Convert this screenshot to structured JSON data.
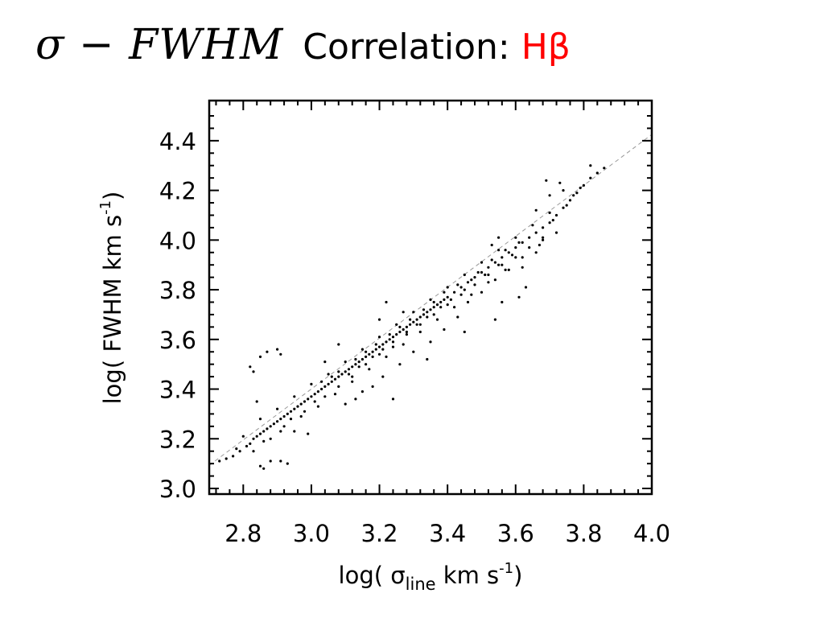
{
  "slide": {
    "title_math": "σ − FWHM",
    "title_text": "Correlation:",
    "title_species": "Hβ",
    "title_species_color": "#ff0000"
  },
  "chart_data": {
    "type": "scatter",
    "xlim": [
      2.7,
      4.0
    ],
    "ylim": [
      3.0,
      4.5
    ],
    "xticks": [
      2.8,
      3.0,
      3.2,
      3.4,
      3.6,
      3.8,
      4.0
    ],
    "yticks": [
      3.0,
      3.2,
      3.4,
      3.6,
      3.8,
      4.0,
      4.2,
      4.4
    ],
    "xtick_labels": [
      "2.8",
      "3.0",
      "3.2",
      "3.4",
      "3.6",
      "3.8",
      "4.0"
    ],
    "ytick_labels": [
      "3.0",
      "3.2",
      "3.4",
      "3.6",
      "3.8",
      "4.0",
      "4.2",
      "4.4"
    ],
    "xlabel": {
      "prefix": "log( σ",
      "subscript": "line",
      "units": " km s",
      "exponent": "-1",
      "suffix": ")"
    },
    "ylabel": {
      "prefix": "log( FWHM km s",
      "exponent": "-1",
      "suffix": ")"
    },
    "grid": false,
    "point_color": "#000000",
    "reference_line": {
      "style": "dashed",
      "color": "#999999",
      "x": [
        2.7,
        4.0
      ],
      "y": [
        3.093,
        4.425
      ]
    },
    "series": [
      {
        "points": [
          [
            2.73,
            3.11
          ],
          [
            2.75,
            3.12
          ],
          [
            2.77,
            3.13
          ],
          [
            2.79,
            3.15
          ],
          [
            2.81,
            3.17
          ],
          [
            2.82,
            3.18
          ],
          [
            2.83,
            3.2
          ],
          [
            2.84,
            3.21
          ],
          [
            2.85,
            3.22
          ],
          [
            2.86,
            3.23
          ],
          [
            2.87,
            3.24
          ],
          [
            2.88,
            3.25
          ],
          [
            2.89,
            3.26
          ],
          [
            2.9,
            3.27
          ],
          [
            2.91,
            3.28
          ],
          [
            2.92,
            3.29
          ],
          [
            2.93,
            3.3
          ],
          [
            2.94,
            3.31
          ],
          [
            2.95,
            3.32
          ],
          [
            2.96,
            3.33
          ],
          [
            2.97,
            3.34
          ],
          [
            2.98,
            3.35
          ],
          [
            2.99,
            3.36
          ],
          [
            3.0,
            3.37
          ],
          [
            3.01,
            3.38
          ],
          [
            3.02,
            3.39
          ],
          [
            3.03,
            3.4
          ],
          [
            3.04,
            3.41
          ],
          [
            3.05,
            3.42
          ],
          [
            3.06,
            3.43
          ],
          [
            3.07,
            3.44
          ],
          [
            3.08,
            3.45
          ],
          [
            3.09,
            3.46
          ],
          [
            3.1,
            3.47
          ],
          [
            3.11,
            3.48
          ],
          [
            3.12,
            3.49
          ],
          [
            3.13,
            3.5
          ],
          [
            3.14,
            3.51
          ],
          [
            3.15,
            3.52
          ],
          [
            3.16,
            3.53
          ],
          [
            3.17,
            3.54
          ],
          [
            3.18,
            3.55
          ],
          [
            3.19,
            3.56
          ],
          [
            3.2,
            3.57
          ],
          [
            3.21,
            3.58
          ],
          [
            3.22,
            3.59
          ],
          [
            3.23,
            3.6
          ],
          [
            3.24,
            3.61
          ],
          [
            3.25,
            3.62
          ],
          [
            3.26,
            3.63
          ],
          [
            3.27,
            3.64
          ],
          [
            3.28,
            3.65
          ],
          [
            3.29,
            3.66
          ],
          [
            3.3,
            3.67
          ],
          [
            3.31,
            3.68
          ],
          [
            3.32,
            3.69
          ],
          [
            3.33,
            3.7
          ],
          [
            3.34,
            3.71
          ],
          [
            3.35,
            3.72
          ],
          [
            3.36,
            3.73
          ],
          [
            3.37,
            3.74
          ],
          [
            3.38,
            3.75
          ],
          [
            3.39,
            3.76
          ],
          [
            3.4,
            3.77
          ],
          [
            3.42,
            3.79
          ],
          [
            3.44,
            3.81
          ],
          [
            3.46,
            3.83
          ],
          [
            3.48,
            3.85
          ],
          [
            3.5,
            3.87
          ],
          [
            3.52,
            3.89
          ],
          [
            3.54,
            3.91
          ],
          [
            3.56,
            3.93
          ],
          [
            3.58,
            3.95
          ],
          [
            3.6,
            3.97
          ],
          [
            3.62,
            3.99
          ],
          [
            3.64,
            4.01
          ],
          [
            3.66,
            4.03
          ],
          [
            3.68,
            4.05
          ],
          [
            3.7,
            4.07
          ],
          [
            3.72,
            4.1
          ],
          [
            3.74,
            4.13
          ],
          [
            3.76,
            4.16
          ],
          [
            3.78,
            4.19
          ],
          [
            3.8,
            4.22
          ],
          [
            3.82,
            4.25
          ],
          [
            3.84,
            4.27
          ],
          [
            3.86,
            4.29
          ],
          [
            2.8,
            3.21
          ],
          [
            2.83,
            3.15
          ],
          [
            2.85,
            3.28
          ],
          [
            2.88,
            3.2
          ],
          [
            2.9,
            3.32
          ],
          [
            2.92,
            3.25
          ],
          [
            2.95,
            3.37
          ],
          [
            2.97,
            3.29
          ],
          [
            3.0,
            3.42
          ],
          [
            3.02,
            3.33
          ],
          [
            3.05,
            3.46
          ],
          [
            3.07,
            3.38
          ],
          [
            3.1,
            3.51
          ],
          [
            3.12,
            3.43
          ],
          [
            3.15,
            3.56
          ],
          [
            3.17,
            3.48
          ],
          [
            3.2,
            3.61
          ],
          [
            3.22,
            3.53
          ],
          [
            3.25,
            3.66
          ],
          [
            3.27,
            3.58
          ],
          [
            3.3,
            3.71
          ],
          [
            3.32,
            3.63
          ],
          [
            3.35,
            3.76
          ],
          [
            3.37,
            3.68
          ],
          [
            3.4,
            3.81
          ],
          [
            3.42,
            3.73
          ],
          [
            3.45,
            3.86
          ],
          [
            3.47,
            3.78
          ],
          [
            3.5,
            3.91
          ],
          [
            3.52,
            3.83
          ],
          [
            3.55,
            3.96
          ],
          [
            3.57,
            3.88
          ],
          [
            3.6,
            4.01
          ],
          [
            3.62,
            3.93
          ],
          [
            3.65,
            4.06
          ],
          [
            3.67,
            3.98
          ],
          [
            3.7,
            4.11
          ],
          [
            3.72,
            4.03
          ],
          [
            3.03,
            3.43
          ],
          [
            3.06,
            3.45
          ],
          [
            3.08,
            3.47
          ],
          [
            3.11,
            3.46
          ],
          [
            3.13,
            3.52
          ],
          [
            3.14,
            3.49
          ],
          [
            3.16,
            3.55
          ],
          [
            3.18,
            3.53
          ],
          [
            3.19,
            3.58
          ],
          [
            3.21,
            3.56
          ],
          [
            3.23,
            3.62
          ],
          [
            3.24,
            3.59
          ],
          [
            3.26,
            3.65
          ],
          [
            3.28,
            3.63
          ],
          [
            3.29,
            3.68
          ],
          [
            3.31,
            3.66
          ],
          [
            3.33,
            3.72
          ],
          [
            3.34,
            3.69
          ],
          [
            3.36,
            3.75
          ],
          [
            3.38,
            3.73
          ],
          [
            3.39,
            3.79
          ],
          [
            3.41,
            3.76
          ],
          [
            3.43,
            3.82
          ],
          [
            3.45,
            3.8
          ],
          [
            3.47,
            3.84
          ],
          [
            3.49,
            3.87
          ],
          [
            3.51,
            3.86
          ],
          [
            3.53,
            3.92
          ],
          [
            3.55,
            3.9
          ],
          [
            3.57,
            3.96
          ],
          [
            3.59,
            3.94
          ],
          [
            3.61,
            3.99
          ],
          [
            2.78,
            3.16
          ],
          [
            2.86,
            3.19
          ],
          [
            2.91,
            3.23
          ],
          [
            2.94,
            3.28
          ],
          [
            2.98,
            3.31
          ],
          [
            3.01,
            3.35
          ],
          [
            3.04,
            3.37
          ],
          [
            3.08,
            3.41
          ],
          [
            3.12,
            3.45
          ],
          [
            3.16,
            3.5
          ],
          [
            3.2,
            3.54
          ],
          [
            3.24,
            3.57
          ],
          [
            3.28,
            3.62
          ],
          [
            3.32,
            3.66
          ],
          [
            3.36,
            3.7
          ],
          [
            3.4,
            3.74
          ],
          [
            3.44,
            3.78
          ],
          [
            3.48,
            3.82
          ],
          [
            3.52,
            3.86
          ],
          [
            3.56,
            3.9
          ],
          [
            3.6,
            3.93
          ],
          [
            3.64,
            3.97
          ],
          [
            3.68,
            4.01
          ],
          [
            2.82,
            3.49
          ],
          [
            2.83,
            3.47
          ],
          [
            2.85,
            3.53
          ],
          [
            2.87,
            3.55
          ],
          [
            2.9,
            3.56
          ],
          [
            2.91,
            3.54
          ],
          [
            2.85,
            3.09
          ],
          [
            2.86,
            3.08
          ],
          [
            2.88,
            3.11
          ],
          [
            2.91,
            3.11
          ],
          [
            2.95,
            3.23
          ],
          [
            2.99,
            3.22
          ],
          [
            2.84,
            3.35
          ],
          [
            2.93,
            3.1
          ],
          [
            3.1,
            3.34
          ],
          [
            3.13,
            3.36
          ],
          [
            3.15,
            3.39
          ],
          [
            3.24,
            3.36
          ],
          [
            3.34,
            3.52
          ],
          [
            3.27,
            3.71
          ],
          [
            3.22,
            3.75
          ],
          [
            3.2,
            3.68
          ],
          [
            3.45,
            3.63
          ],
          [
            3.54,
            3.68
          ],
          [
            3.56,
            3.75
          ],
          [
            3.61,
            3.77
          ],
          [
            3.63,
            3.81
          ],
          [
            3.55,
            4.01
          ],
          [
            3.53,
            3.98
          ],
          [
            3.66,
            4.12
          ],
          [
            3.7,
            4.18
          ],
          [
            3.69,
            4.24
          ],
          [
            3.73,
            4.23
          ],
          [
            3.77,
            4.18
          ],
          [
            3.79,
            4.21
          ],
          [
            3.75,
            4.14
          ],
          [
            3.68,
            4.0
          ],
          [
            3.71,
            4.08
          ],
          [
            3.74,
            4.2
          ],
          [
            3.82,
            4.3
          ],
          [
            3.04,
            3.51
          ],
          [
            3.08,
            3.58
          ],
          [
            3.18,
            3.41
          ],
          [
            3.21,
            3.45
          ],
          [
            3.26,
            3.5
          ],
          [
            3.3,
            3.55
          ],
          [
            3.35,
            3.59
          ],
          [
            3.39,
            3.64
          ],
          [
            3.43,
            3.69
          ],
          [
            3.46,
            3.75
          ],
          [
            3.5,
            3.79
          ],
          [
            3.54,
            3.84
          ],
          [
            3.58,
            3.88
          ],
          [
            3.62,
            3.89
          ],
          [
            3.66,
            3.95
          ]
        ]
      }
    ]
  }
}
